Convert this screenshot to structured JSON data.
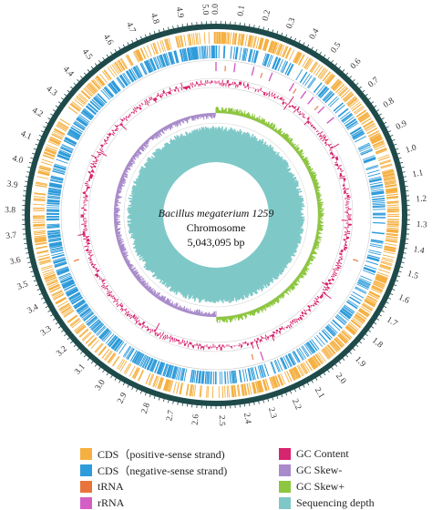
{
  "genome": {
    "organism": "Bacillus megaterium 1259",
    "replicon": "Chromosome",
    "size": "5,043,095 bp"
  },
  "ticks": [
    "0.0",
    "0.1",
    "0.2",
    "0.3",
    "0.4",
    "0.5",
    "0.6",
    "0.7",
    "0.8",
    "0.9",
    "1.0",
    "1.1",
    "1.2",
    "1.3",
    "1.4",
    "1.5",
    "1.6",
    "1.7",
    "1.8",
    "1.9",
    "2.0",
    "2.1",
    "2.2",
    "2.3",
    "2.4",
    "2.5",
    "2.6",
    "2.7",
    "2.8",
    "2.9",
    "3.0",
    "3.1",
    "3.2",
    "3.3",
    "3.4",
    "3.5",
    "3.6",
    "3.7",
    "3.8",
    "3.9",
    "4.0",
    "4.1",
    "4.2",
    "4.3",
    "4.4",
    "4.5",
    "4.6",
    "4.7",
    "4.8",
    "4.9",
    "5.0"
  ],
  "legend": [
    {
      "key": "cds_pos",
      "label": "CDS（positive-sense strand)",
      "color": "#F5B041"
    },
    {
      "key": "cds_neg",
      "label": "CDS（negative-sense strand)",
      "color": "#2E9BDA"
    },
    {
      "key": "trna",
      "label": "tRNA",
      "color": "#E8743B"
    },
    {
      "key": "rrna",
      "label": "rRNA",
      "color": "#D45FC4"
    },
    {
      "key": "gc_content",
      "label": "GC Content",
      "color": "#D6246E"
    },
    {
      "key": "gc_skew_neg",
      "label": "GC Skew-",
      "color": "#A98BCB"
    },
    {
      "key": "gc_skew_pos",
      "label": "GC Skew+",
      "color": "#8DC63F"
    },
    {
      "key": "depth",
      "label": "Sequencing depth",
      "color": "#7EC8C8"
    }
  ],
  "colors": {
    "backbone": "#1F4A4A",
    "cds_pos": "#F5B041",
    "cds_neg": "#2E9BDA",
    "trna": "#E8743B",
    "rrna": "#D45FC4",
    "gc_content": "#D6246E",
    "gc_skew_neg": "#A98BCB",
    "gc_skew_pos": "#8DC63F",
    "depth": "#7EC8C8"
  }
}
